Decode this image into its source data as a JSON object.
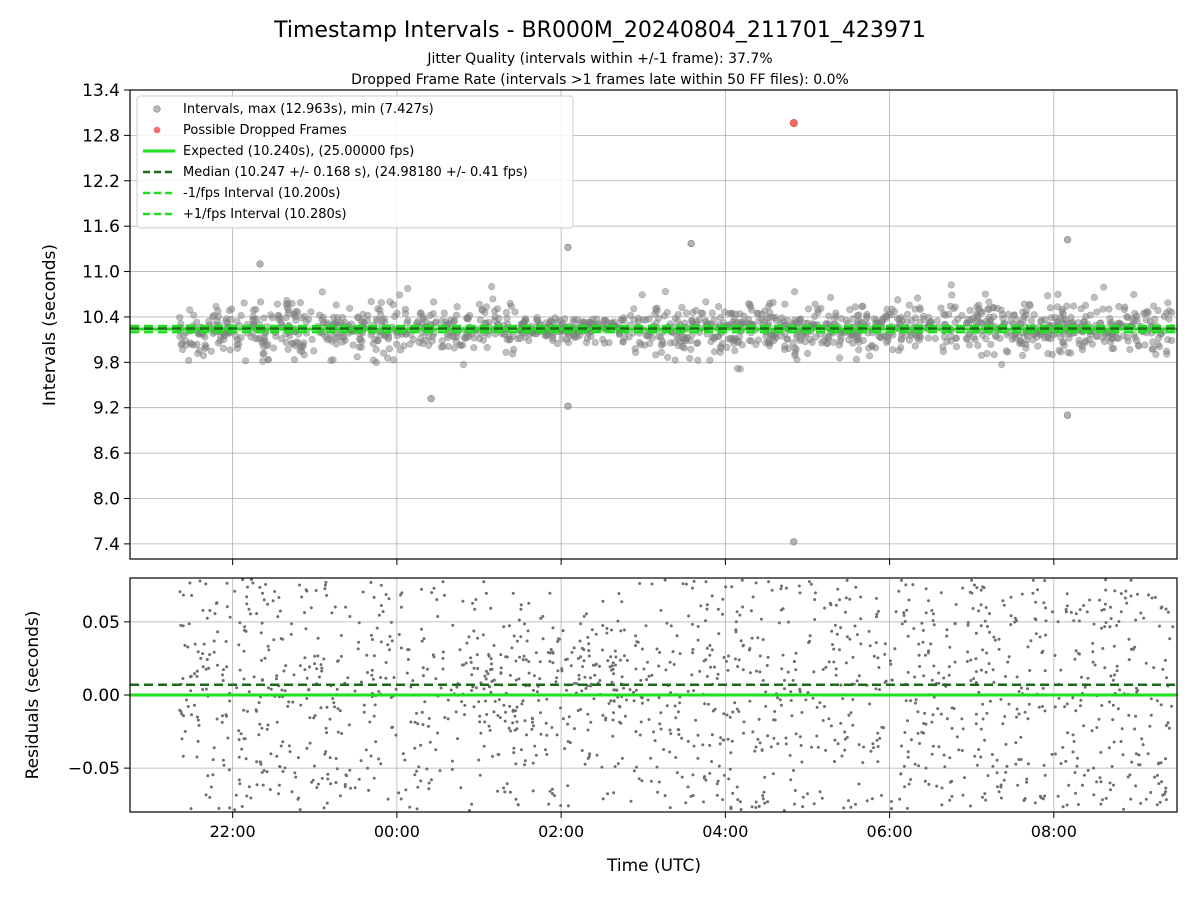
{
  "chart_data": {
    "title": "Timestamp Intervals - BR000M_20240804_211701_423971",
    "subtitle_1": "Jitter Quality (intervals within +/-1 frame): 37.7%",
    "subtitle_2": "Dropped Frame Rate (intervals >1 frames late within 50 FF files): 0.0%",
    "xlabel": "Time (UTC)",
    "x_ticks": [
      "22:00",
      "00:00",
      "02:00",
      "04:00",
      "06:00",
      "08:00"
    ],
    "grid": true,
    "panels": [
      {
        "type": "scatter",
        "ylabel": "Intervals (seconds)",
        "ylim": [
          7.2,
          13.4
        ],
        "y_ticks": [
          "7.4",
          "8.0",
          "8.6",
          "9.2",
          "9.8",
          "10.4",
          "11.0",
          "11.6",
          "12.2",
          "12.8",
          "13.4"
        ],
        "legend_position": "upper-left",
        "series": [
          {
            "name": "Intervals, max (12.963s), min (7.427s)",
            "kind": "scatter",
            "color": "#808080"
          },
          {
            "name": "Possible Dropped Frames",
            "kind": "scatter",
            "color": "#ff5a5a",
            "points": [
              {
                "x": "04:50",
                "y": 12.963
              }
            ]
          },
          {
            "name": "Expected (10.240s), (25.00000 fps)",
            "kind": "hline",
            "y": 10.24,
            "color": "#1be21b",
            "style": "solid"
          },
          {
            "name": "Median (10.247 +/- 0.168 s), (24.98180 +/- 0.41 fps)",
            "kind": "hline",
            "y": 10.247,
            "color": "#1a6b1a",
            "style": "dashed"
          },
          {
            "name": "-1/fps Interval (10.200s)",
            "kind": "hline",
            "y": 10.2,
            "color": "#1be21b",
            "style": "dashed"
          },
          {
            "name": "+1/fps Interval (10.280s)",
            "kind": "hline",
            "y": 10.28,
            "color": "#1be21b",
            "style": "dashed"
          }
        ],
        "notable_points": [
          {
            "x": "04:50",
            "y": 7.427
          },
          {
            "x": "08:10",
            "y": 11.42
          },
          {
            "x": "03:35",
            "y": 11.37
          },
          {
            "x": "02:05",
            "y": 11.32
          },
          {
            "x": "22:20",
            "y": 11.1
          },
          {
            "x": "08:10",
            "y": 9.1
          },
          {
            "x": "02:05",
            "y": 9.22
          },
          {
            "x": "00:25",
            "y": 9.32
          }
        ]
      },
      {
        "type": "scatter",
        "ylabel": "Residuals (seconds)",
        "ylim": [
          -0.08,
          0.08
        ],
        "y_ticks": [
          "−0.05",
          "0.00",
          "0.05"
        ],
        "lines": [
          {
            "y": 0.0,
            "color": "#1be21b",
            "style": "solid"
          },
          {
            "y": 0.007,
            "color": "#1a6b1a",
            "style": "dashed"
          }
        ]
      }
    ]
  }
}
